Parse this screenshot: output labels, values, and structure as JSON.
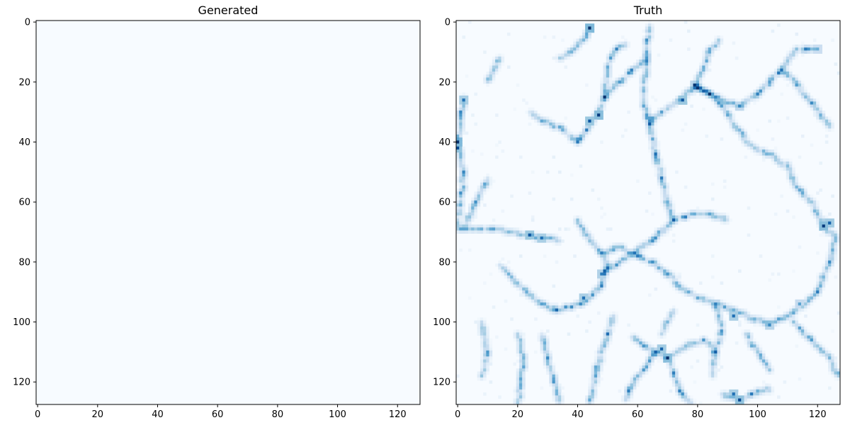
{
  "chart_data": [
    {
      "type": "heatmap",
      "title": "Generated",
      "xlabel": "",
      "ylabel": "",
      "xlim": [
        0,
        128
      ],
      "ylim": [
        128,
        0
      ],
      "xticks": [
        0,
        20,
        40,
        60,
        80,
        100,
        120
      ],
      "yticks": [
        0,
        20,
        40,
        60,
        80,
        100,
        120
      ],
      "grid": false,
      "colormap": "Blues",
      "image": "uniform lowest value (blank)",
      "fill_color": "#f7fbff"
    },
    {
      "type": "heatmap",
      "title": "Truth",
      "xlabel": "",
      "ylabel": "",
      "xlim": [
        0,
        128
      ],
      "ylim": [
        128,
        0
      ],
      "xticks": [
        0,
        20,
        40,
        60,
        80,
        100,
        120
      ],
      "yticks": [
        0,
        20,
        40,
        60,
        80,
        100,
        120
      ],
      "grid": false,
      "colormap": "Blues",
      "image": "filamentary web structure",
      "filaments": [
        [
          [
            0,
            69
          ],
          [
            12,
            69
          ],
          [
            24,
            71
          ],
          [
            34,
            73
          ]
        ],
        [
          [
            0,
            40
          ],
          [
            1,
            30
          ],
          [
            2,
            25
          ]
        ],
        [
          [
            0,
            40
          ],
          [
            2,
            50
          ],
          [
            0,
            68
          ]
        ],
        [
          [
            2,
            69
          ],
          [
            6,
            60
          ],
          [
            10,
            52
          ]
        ],
        [
          [
            14,
            81
          ],
          [
            18,
            85
          ],
          [
            23,
            90
          ],
          [
            28,
            94
          ],
          [
            33,
            96
          ],
          [
            38,
            95
          ],
          [
            43,
            93
          ]
        ],
        [
          [
            43,
            93
          ],
          [
            48,
            88
          ],
          [
            50,
            82
          ],
          [
            48,
            77
          ]
        ],
        [
          [
            48,
            77
          ],
          [
            43,
            71
          ],
          [
            40,
            66
          ]
        ],
        [
          [
            48,
            77
          ],
          [
            54,
            75
          ],
          [
            60,
            78
          ],
          [
            65,
            80
          ],
          [
            70,
            84
          ]
        ],
        [
          [
            70,
            84
          ],
          [
            74,
            88
          ],
          [
            80,
            92
          ],
          [
            86,
            94
          ]
        ],
        [
          [
            86,
            94
          ],
          [
            92,
            96
          ],
          [
            99,
            99
          ],
          [
            104,
            101
          ]
        ],
        [
          [
            86,
            94
          ],
          [
            88,
            103
          ],
          [
            86,
            110
          ],
          [
            85,
            118
          ]
        ],
        [
          [
            104,
            101
          ],
          [
            110,
            98
          ],
          [
            116,
            94
          ],
          [
            120,
            90
          ]
        ],
        [
          [
            120,
            90
          ],
          [
            124,
            80
          ],
          [
            126,
            72
          ],
          [
            122,
            68
          ],
          [
            118,
            60
          ],
          [
            113,
            55
          ]
        ],
        [
          [
            113,
            55
          ],
          [
            110,
            48
          ],
          [
            104,
            44
          ],
          [
            96,
            40
          ]
        ],
        [
          [
            96,
            40
          ],
          [
            90,
            30
          ],
          [
            84,
            24
          ],
          [
            79,
            21
          ]
        ],
        [
          [
            79,
            21
          ],
          [
            74,
            26
          ],
          [
            68,
            30
          ],
          [
            64,
            34
          ]
        ],
        [
          [
            79,
            21
          ],
          [
            82,
            15
          ],
          [
            84,
            10
          ],
          [
            87,
            6
          ]
        ],
        [
          [
            79,
            21
          ],
          [
            88,
            26
          ],
          [
            94,
            28
          ]
        ],
        [
          [
            94,
            28
          ],
          [
            100,
            24
          ],
          [
            104,
            20
          ],
          [
            108,
            16
          ],
          [
            112,
            10
          ],
          [
            116,
            9
          ],
          [
            120,
            9
          ]
        ],
        [
          [
            108,
            16
          ],
          [
            113,
            20
          ],
          [
            118,
            27
          ],
          [
            124,
            35
          ]
        ],
        [
          [
            64,
            34
          ],
          [
            62,
            28
          ],
          [
            62,
            20
          ],
          [
            63,
            12
          ],
          [
            63,
            6
          ],
          [
            64,
            1
          ]
        ],
        [
          [
            63,
            12
          ],
          [
            58,
            16
          ],
          [
            54,
            20
          ],
          [
            49,
            25
          ],
          [
            46,
            31
          ],
          [
            43,
            36
          ],
          [
            40,
            40
          ]
        ],
        [
          [
            49,
            25
          ],
          [
            50,
            15
          ],
          [
            52,
            10
          ],
          [
            56,
            7
          ]
        ],
        [
          [
            44,
            2
          ],
          [
            42,
            6
          ],
          [
            38,
            10
          ],
          [
            34,
            12
          ]
        ],
        [
          [
            40,
            40
          ],
          [
            34,
            35
          ],
          [
            28,
            33
          ],
          [
            24,
            30
          ]
        ],
        [
          [
            64,
            34
          ],
          [
            66,
            44
          ],
          [
            68,
            52
          ],
          [
            70,
            60
          ],
          [
            72,
            66
          ]
        ],
        [
          [
            72,
            66
          ],
          [
            66,
            72
          ],
          [
            60,
            76
          ],
          [
            54,
            80
          ],
          [
            48,
            84
          ]
        ],
        [
          [
            72,
            66
          ],
          [
            78,
            64
          ],
          [
            84,
            64
          ],
          [
            90,
            66
          ]
        ],
        [
          [
            58,
            105
          ],
          [
            62,
            108
          ],
          [
            66,
            110
          ],
          [
            70,
            112
          ],
          [
            72,
            117
          ],
          [
            74,
            123
          ],
          [
            78,
            127
          ]
        ],
        [
          [
            66,
            110
          ],
          [
            62,
            116
          ],
          [
            58,
            121
          ],
          [
            56,
            126
          ]
        ],
        [
          [
            70,
            112
          ],
          [
            76,
            108
          ],
          [
            82,
            106
          ],
          [
            86,
            110
          ]
        ],
        [
          [
            88,
            124
          ],
          [
            93,
            126
          ],
          [
            98,
            124
          ],
          [
            104,
            122
          ]
        ],
        [
          [
            20,
            104
          ],
          [
            22,
            112
          ],
          [
            21,
            120
          ],
          [
            20,
            127
          ]
        ],
        [
          [
            28,
            104
          ],
          [
            30,
            112
          ],
          [
            32,
            120
          ],
          [
            34,
            127
          ]
        ],
        [
          [
            8,
            100
          ],
          [
            10,
            110
          ],
          [
            8,
            118
          ]
        ],
        [
          [
            72,
            96
          ],
          [
            70,
            100
          ],
          [
            68,
            104
          ]
        ],
        [
          [
            112,
            100
          ],
          [
            118,
            106
          ],
          [
            124,
            112
          ],
          [
            127,
            118
          ]
        ],
        [
          [
            10,
            20
          ],
          [
            12,
            16
          ],
          [
            14,
            12
          ]
        ],
        [
          [
            96,
            104
          ],
          [
            100,
            110
          ],
          [
            104,
            116
          ]
        ],
        [
          [
            52,
            98
          ],
          [
            50,
            104
          ],
          [
            48,
            110
          ],
          [
            46,
            118
          ],
          [
            44,
            127
          ]
        ]
      ],
      "hotspots": [
        [
          44,
          2,
          1.0
        ],
        [
          47,
          31,
          0.95
        ],
        [
          44,
          33,
          0.85
        ],
        [
          0,
          40,
          1.0
        ],
        [
          0,
          42,
          0.9
        ],
        [
          24,
          71,
          0.85
        ],
        [
          28,
          72,
          0.75
        ],
        [
          75,
          26,
          0.85
        ],
        [
          70,
          112,
          0.95
        ],
        [
          68,
          109,
          0.8
        ],
        [
          94,
          126,
          0.9
        ],
        [
          92,
          124,
          0.75
        ],
        [
          122,
          68,
          0.95
        ],
        [
          124,
          67,
          0.8
        ],
        [
          92,
          98,
          0.75
        ],
        [
          48,
          84,
          0.7
        ],
        [
          42,
          92,
          0.75
        ],
        [
          104,
          101,
          0.65
        ],
        [
          86,
          94,
          0.6
        ],
        [
          63,
          12,
          0.6
        ],
        [
          2,
          26,
          0.75
        ],
        [
          79,
          21,
          0.6
        ],
        [
          94,
          28,
          0.6
        ],
        [
          120,
          9,
          0.5
        ],
        [
          114,
          94,
          0.55
        ]
      ]
    }
  ]
}
